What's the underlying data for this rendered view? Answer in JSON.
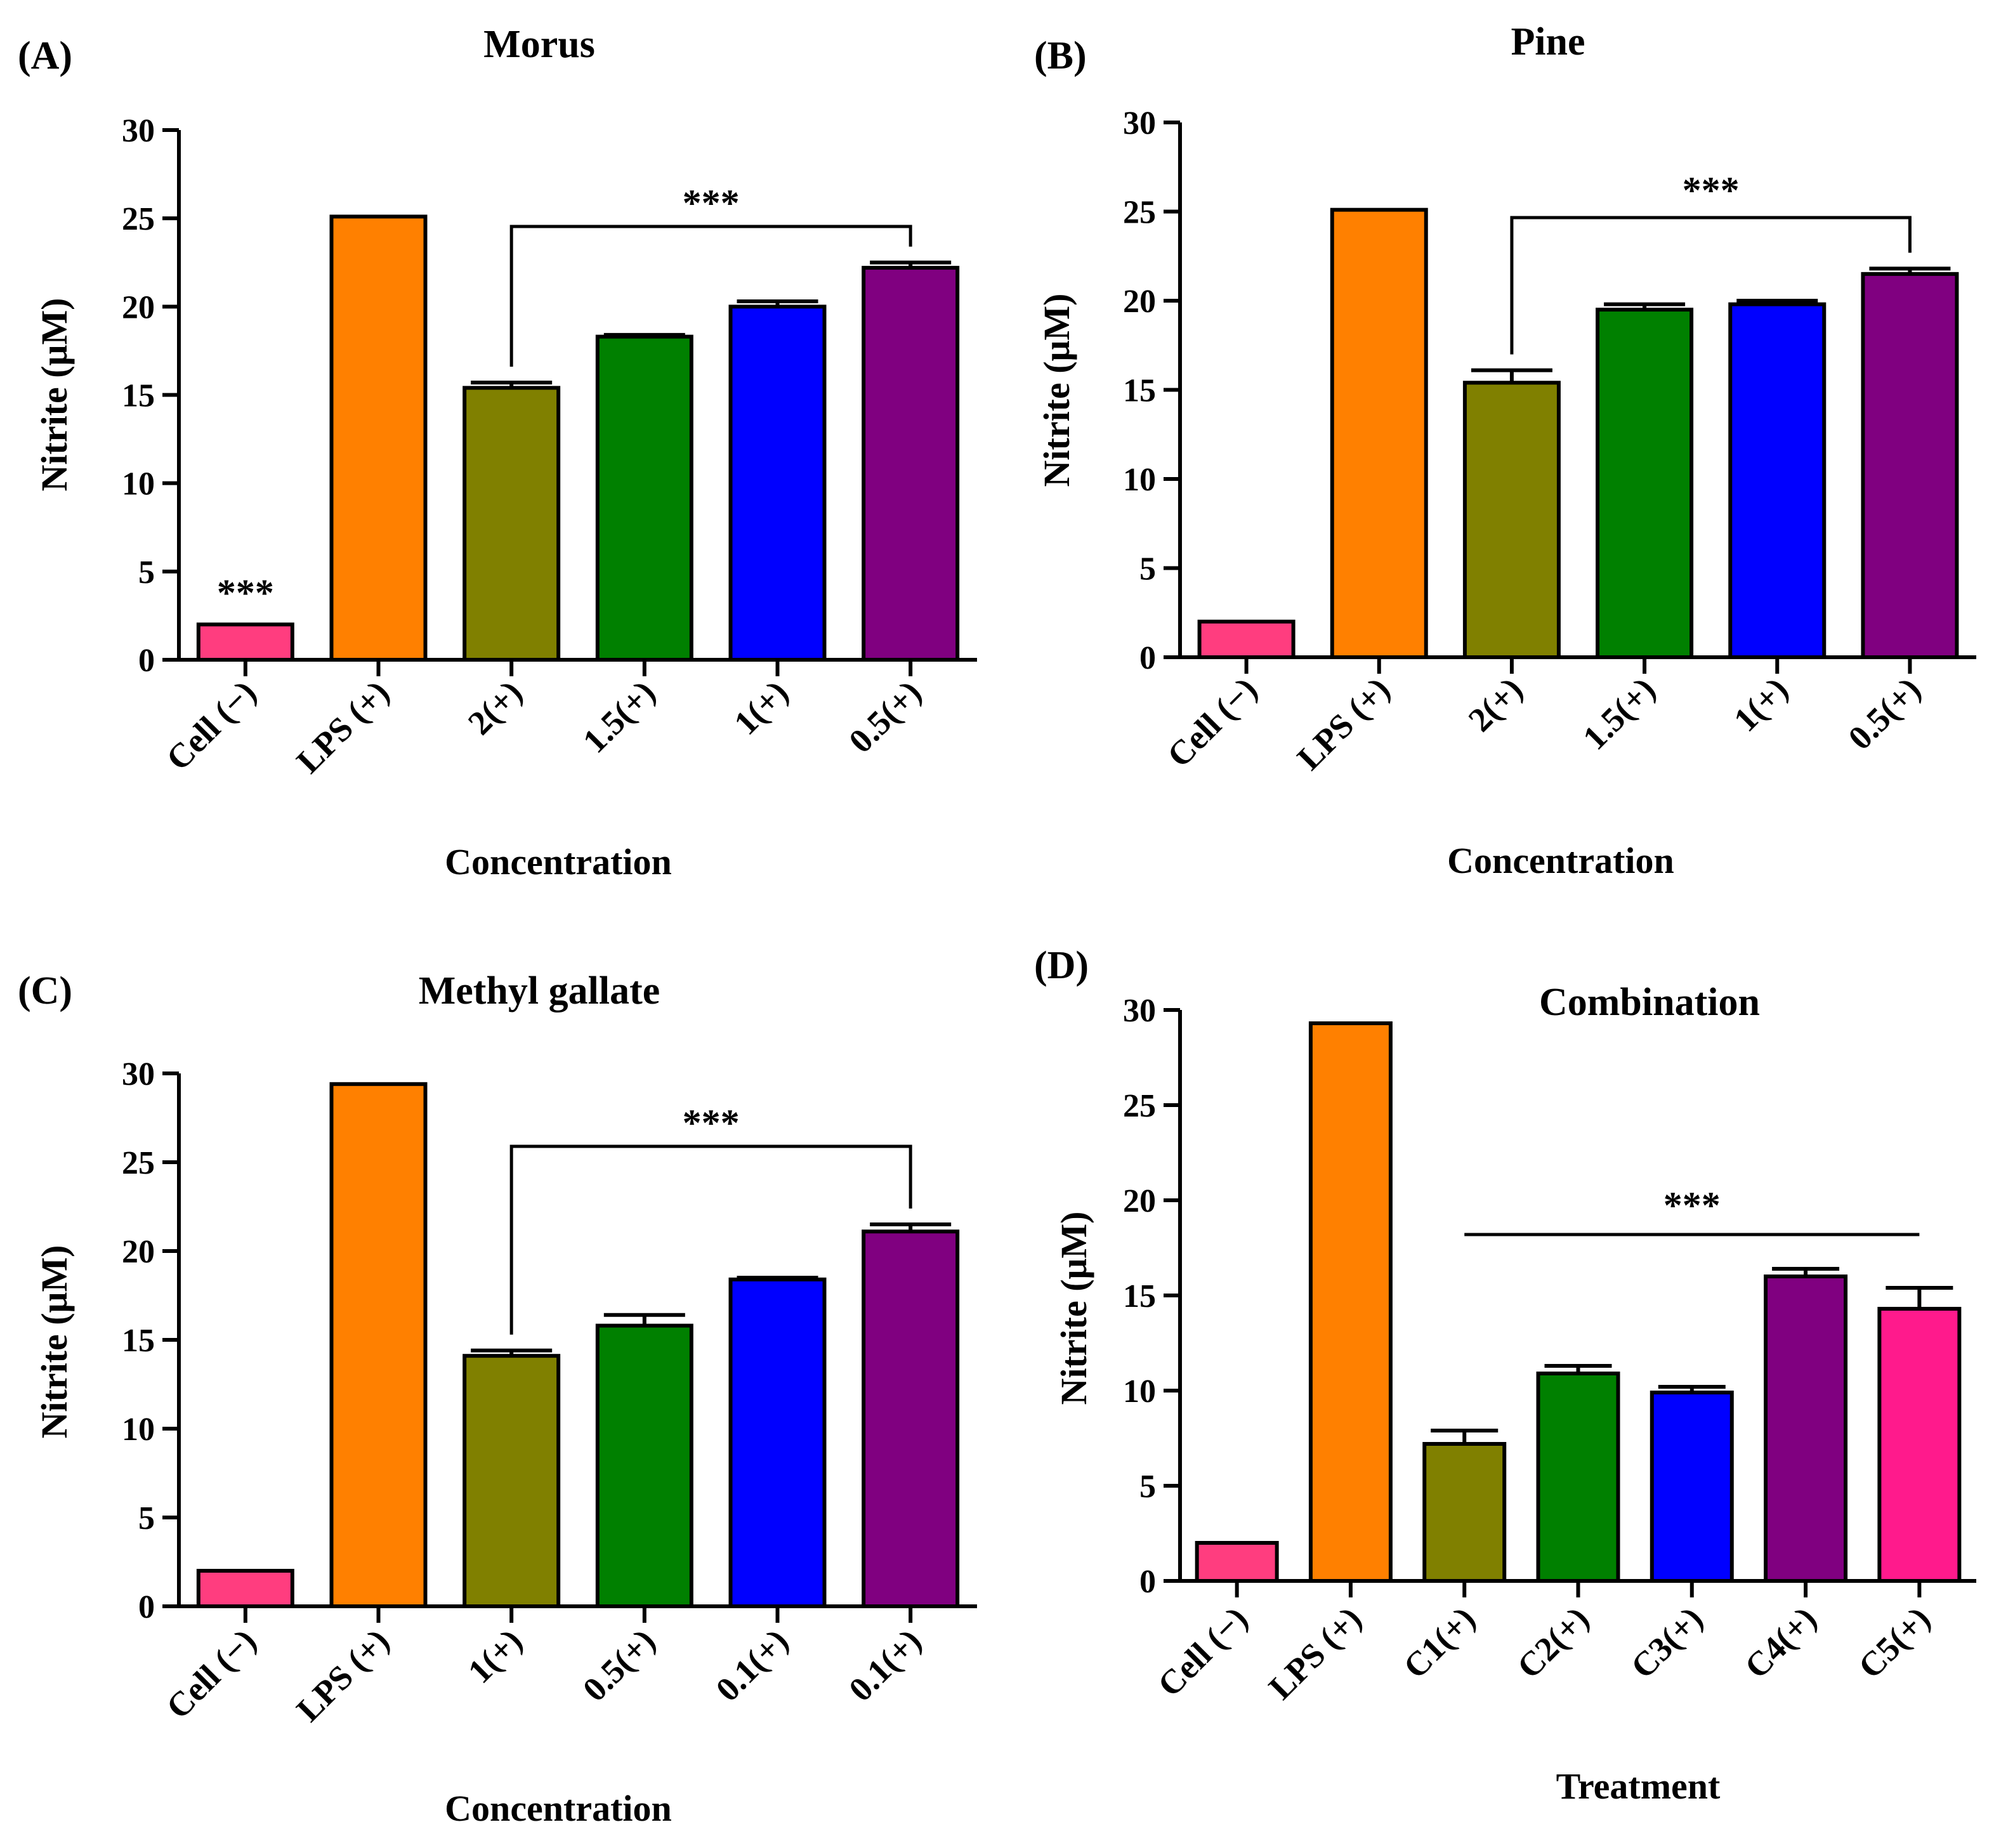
{
  "chart_data": [
    {
      "type": "bar",
      "panel": "(A)",
      "title": "Morus",
      "xlabel": "Concentration",
      "ylabel": "Nitrite (μM)",
      "ylim": [
        0,
        30
      ],
      "yticks": [
        0,
        5,
        10,
        15,
        20,
        25,
        30
      ],
      "categories": [
        "Cell (−)",
        "LPS (+)",
        "2(+)",
        "1.5(+)",
        "1(+)",
        "0.5(+)"
      ],
      "values": [
        2.0,
        25.1,
        15.4,
        18.3,
        20.0,
        22.2
      ],
      "errors": [
        0,
        0,
        0.3,
        0.1,
        0.3,
        0.3
      ],
      "colors": [
        "#ff3d7f",
        "#ff8000",
        "#808000",
        "#008000",
        "#0000ff",
        "#800080"
      ],
      "significance": [
        {
          "label": "***",
          "type": "single",
          "category": 0
        },
        {
          "label": "***",
          "type": "bracket",
          "from": 2,
          "to": 5
        }
      ]
    },
    {
      "type": "bar",
      "panel": "(B)",
      "title": "Pine",
      "xlabel": "Concentration",
      "ylabel": "Nitrite (μM)",
      "ylim": [
        0,
        30
      ],
      "yticks": [
        0,
        5,
        10,
        15,
        20,
        25,
        30
      ],
      "categories": [
        "Cell (−)",
        "LPS (+)",
        "2(+)",
        "1.5(+)",
        "1(+)",
        "0.5(+)"
      ],
      "values": [
        2.0,
        25.1,
        15.4,
        19.5,
        19.8,
        21.5
      ],
      "errors": [
        0,
        0,
        0.7,
        0.3,
        0.2,
        0.3
      ],
      "colors": [
        "#ff3d7f",
        "#ff8000",
        "#808000",
        "#008000",
        "#0000ff",
        "#800080"
      ],
      "significance": [
        {
          "label": "***",
          "type": "bracket",
          "from": 2,
          "to": 5
        }
      ]
    },
    {
      "type": "bar",
      "panel": "(C)",
      "title": "Methyl gallate",
      "xlabel": "Concentration",
      "ylabel": "Nitrite (μM)",
      "ylim": [
        0,
        30
      ],
      "yticks": [
        0,
        5,
        10,
        15,
        20,
        25,
        30
      ],
      "categories": [
        "Cell (−)",
        "LPS (+)",
        "1(+)",
        "0.5(+)",
        "0.1(+)",
        "0.1(+)"
      ],
      "values": [
        2.0,
        29.4,
        14.1,
        15.8,
        18.4,
        21.1
      ],
      "errors": [
        0,
        0,
        0.3,
        0.6,
        0.1,
        0.4
      ],
      "colors": [
        "#ff3d7f",
        "#ff8000",
        "#808000",
        "#008000",
        "#0000ff",
        "#800080"
      ],
      "significance": [
        {
          "label": "***",
          "type": "bracket",
          "from": 2,
          "to": 5
        }
      ]
    },
    {
      "type": "bar",
      "panel": "(D)",
      "title": "Combination",
      "xlabel": "Treatment",
      "ylabel": "Nitrite (μM)",
      "ylim": [
        0,
        30
      ],
      "yticks": [
        0,
        5,
        10,
        15,
        20,
        25,
        30
      ],
      "categories": [
        "Cell (−)",
        "LPS (+)",
        "C1(+)",
        "C2(+)",
        "C3(+)",
        "C4(+)",
        "C5(+)"
      ],
      "values": [
        2.0,
        29.3,
        7.2,
        10.9,
        9.9,
        16.0,
        14.3
      ],
      "errors": [
        0,
        0,
        0.7,
        0.4,
        0.3,
        0.4,
        1.1
      ],
      "colors": [
        "#ff3d7f",
        "#ff8000",
        "#808000",
        "#008000",
        "#0000ff",
        "#800080",
        "#ff1a8c"
      ],
      "significance": [
        {
          "label": "***",
          "type": "line",
          "from": 2,
          "to": 6
        }
      ]
    }
  ]
}
